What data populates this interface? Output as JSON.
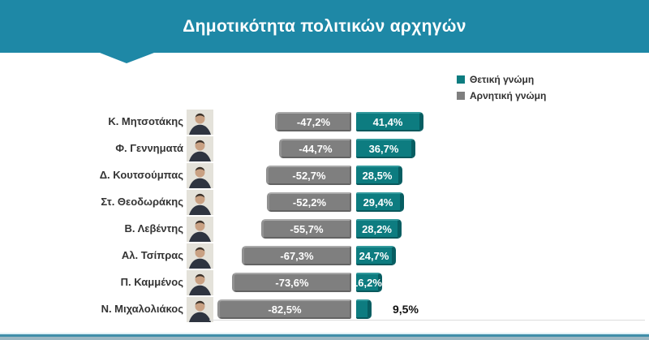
{
  "header": {
    "title": "Δημοτικότητα πολιτικών αρχηγών"
  },
  "legend": {
    "positive": {
      "label": "Θετική γνώμη",
      "color": "#0d7c80"
    },
    "negative": {
      "label": "Αρνητική γνώμη",
      "color": "#7f7f7f"
    }
  },
  "rows": [
    {
      "name": "Κ. Μητσοτάκης",
      "negative": -47.2,
      "positive": 41.4,
      "negative_label": "-47,2%",
      "positive_label": "41,4%",
      "positive_label_outside": false
    },
    {
      "name": "Φ. Γεννηματά",
      "negative": -44.7,
      "positive": 36.7,
      "negative_label": "-44,7%",
      "positive_label": "36,7%",
      "positive_label_outside": false
    },
    {
      "name": "Δ. Κουτσούμπας",
      "negative": -52.7,
      "positive": 28.5,
      "negative_label": "-52,7%",
      "positive_label": "28,5%",
      "positive_label_outside": false
    },
    {
      "name": "Στ. Θεοδωράκης",
      "negative": -52.2,
      "positive": 29.4,
      "negative_label": "-52,2%",
      "positive_label": "29,4%",
      "positive_label_outside": false
    },
    {
      "name": "Β. Λεβέντης",
      "negative": -55.7,
      "positive": 28.2,
      "negative_label": "-55,7%",
      "positive_label": "28,2%",
      "positive_label_outside": false
    },
    {
      "name": "Αλ. Τσίπρας",
      "negative": -67.3,
      "positive": 24.7,
      "negative_label": "-67,3%",
      "positive_label": "24,7%",
      "positive_label_outside": false
    },
    {
      "name": "Π. Καμμένος",
      "negative": -73.6,
      "positive": 16.2,
      "negative_label": "-73,6%",
      "positive_label": "16,2%",
      "positive_label_outside": false
    },
    {
      "name": "Ν. Μιχαλολιάκος",
      "negative": -82.5,
      "positive": 9.5,
      "negative_label": "-82,5%",
      "positive_label": "9,5%",
      "positive_label_outside": true
    }
  ],
  "colors": {
    "header": "#1e88a6",
    "positive_bar": "#0d7c80",
    "negative_bar": "#7f7f7f",
    "footer_line": "#3f8ea9",
    "footer_band": "#9ab6c2"
  },
  "chart_data": {
    "type": "bar",
    "orientation": "horizontal_diverging",
    "title": "Δημοτικότητα πολιτικών αρχηγών",
    "categories": [
      "Κ. Μητσοτάκης",
      "Φ. Γεννηματά",
      "Δ. Κουτσούμπας",
      "Στ. Θεοδωράκης",
      "Β. Λεβέντης",
      "Αλ. Τσίπρας",
      "Π. Καμμένος",
      "Ν. Μιχαλολιάκος"
    ],
    "series": [
      {
        "name": "Θετική γνώμη",
        "color": "#0d7c80",
        "values": [
          41.4,
          36.7,
          28.5,
          29.4,
          28.2,
          24.7,
          16.2,
          9.5
        ]
      },
      {
        "name": "Αρνητική γνώμη",
        "color": "#7f7f7f",
        "values": [
          -47.2,
          -44.7,
          -52.7,
          -52.2,
          -55.7,
          -67.3,
          -73.6,
          -82.5
        ]
      }
    ],
    "value_label_format": "comma-decimal percent, negatives shown with minus sign",
    "xlim": [
      -100,
      50
    ],
    "grid": false,
    "legend_position": "top-right",
    "category_images": "portrait photo beside each leader name"
  }
}
